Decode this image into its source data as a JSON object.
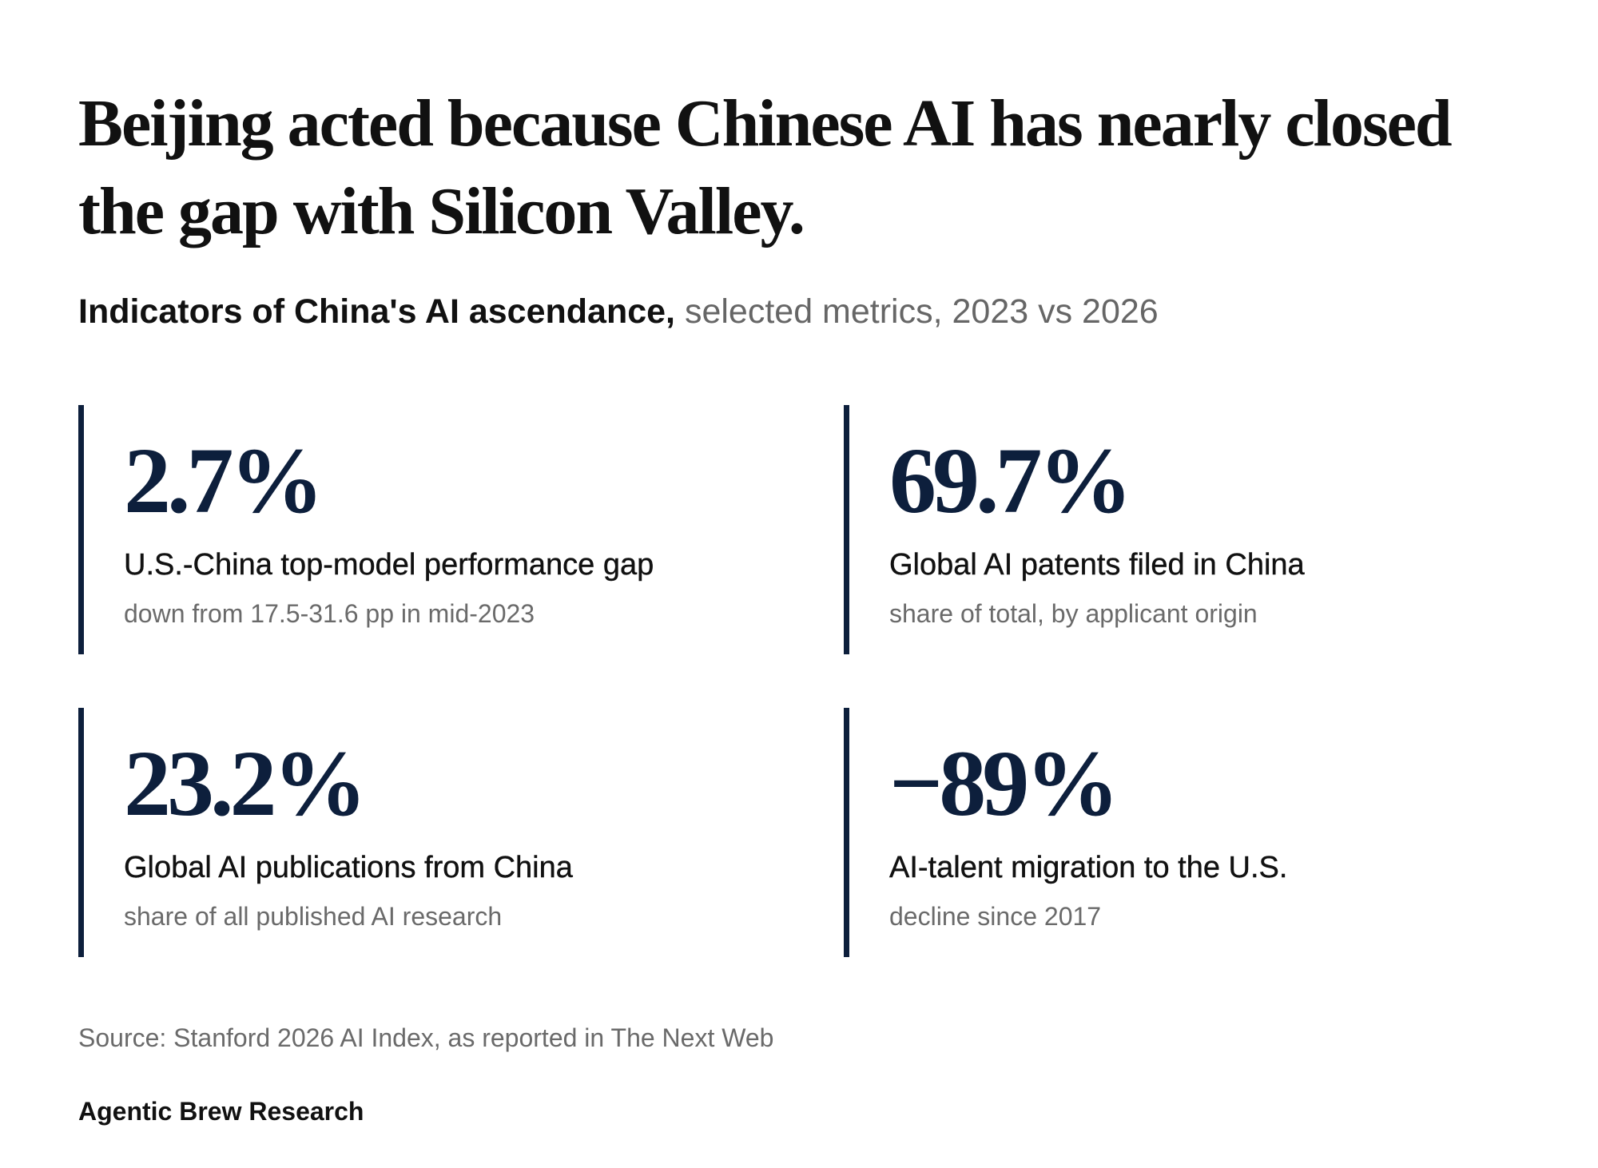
{
  "headline": "Beijing acted because Chinese AI has nearly closed the gap with Silicon Valley.",
  "subtitle": {
    "strong": "Indicators of China's AI ascendance,",
    "light": "selected metrics, 2023 vs 2026"
  },
  "colors": {
    "accent": "#0d1f3c",
    "text": "#111111",
    "muted": "#6a6a6a"
  },
  "chart_data": {
    "type": "table",
    "title": "Indicators of China's AI ascendance, selected metrics, 2023 vs 2026",
    "stats": [
      {
        "value": "2.7%",
        "label": "U.S.-China top-model performance gap",
        "note": "down from 17.5-31.6 pp in mid-2023"
      },
      {
        "value": "69.7%",
        "label": "Global AI patents filed in China",
        "note": "share of total, by applicant origin"
      },
      {
        "value": "23.2%",
        "label": "Global AI publications from China",
        "note": "share of all published AI research"
      },
      {
        "value": "−89%",
        "label": "AI-talent migration to the U.S.",
        "note": "decline since 2017"
      }
    ]
  },
  "source": "Source: Stanford 2026 AI Index, as reported in The Next Web",
  "brand": "Agentic Brew Research"
}
